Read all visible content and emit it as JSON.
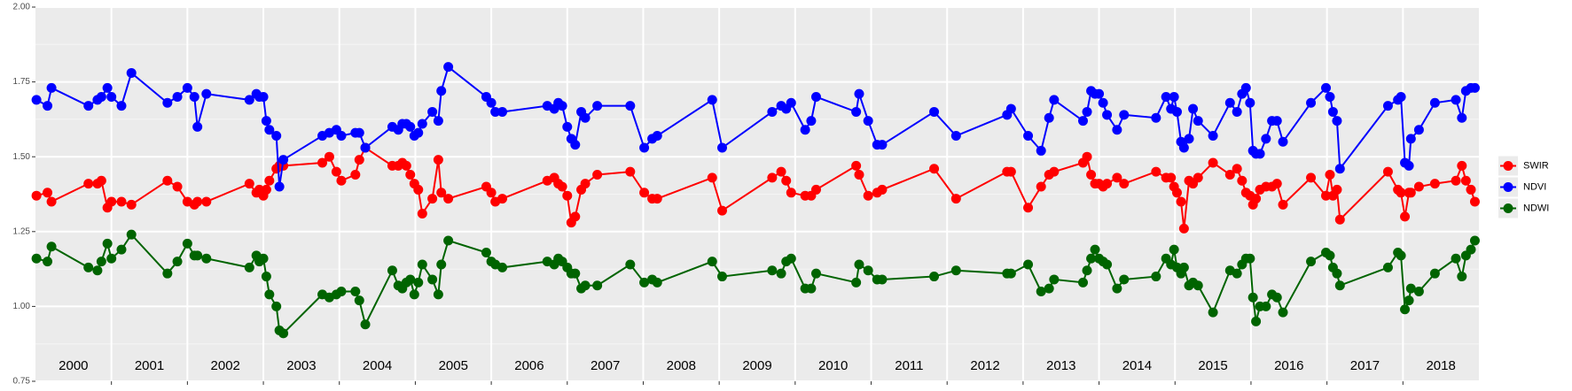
{
  "chart_data": {
    "type": "line",
    "x": [
      2000.013,
      2000.158,
      2000.211,
      2000.697,
      2000.816,
      2000.868,
      2000.947,
      2001.0,
      2001.132,
      2001.263,
      2001.737,
      2001.868,
      2002.0,
      2002.092,
      2002.132,
      2002.25,
      2002.816,
      2002.908,
      2002.947,
      2003.0,
      2003.039,
      2003.079,
      2003.171,
      2003.211,
      2003.263,
      2003.776,
      2003.868,
      2003.961,
      2004.026,
      2004.211,
      2004.263,
      2004.342,
      2004.697,
      2004.776,
      2004.829,
      2004.882,
      2004.934,
      2004.987,
      2005.039,
      2005.092,
      2005.224,
      2005.303,
      2005.342,
      2005.434,
      2005.934,
      2006.0,
      2006.053,
      2006.145,
      2006.737,
      2006.829,
      2006.882,
      2006.934,
      2007.0,
      2007.053,
      2007.105,
      2007.184,
      2007.237,
      2007.395,
      2007.829,
      2008.013,
      2008.118,
      2008.184,
      2008.908,
      2009.039,
      2009.697,
      2009.816,
      2009.882,
      2009.947,
      2010.132,
      2010.211,
      2010.276,
      2010.803,
      2010.842,
      2010.961,
      2011.079,
      2011.145,
      2011.829,
      2012.118,
      2012.789,
      2012.842,
      2013.066,
      2013.237,
      2013.342,
      2013.408,
      2013.789,
      2013.842,
      2013.895,
      2013.947,
      2014.0,
      2014.053,
      2014.105,
      2014.237,
      2014.329,
      2014.75,
      2014.882,
      2014.947,
      2014.987,
      2015.026,
      2015.079,
      2015.118,
      2015.184,
      2015.237,
      2015.303,
      2015.5,
      2015.724,
      2015.816,
      2015.882,
      2015.934,
      2015.987,
      2016.026,
      2016.066,
      2016.118,
      2016.197,
      2016.276,
      2016.342,
      2016.421,
      2016.789,
      2016.987,
      2017.039,
      2017.079,
      2017.132,
      2017.171,
      2017.803,
      2017.934,
      2017.974,
      2018.026,
      2018.079,
      2018.105,
      2018.211,
      2018.421,
      2018.697,
      2018.776,
      2018.829,
      2018.895,
      2018.947
    ],
    "series": [
      {
        "name": "SWIR",
        "color": "#ff0000",
        "values": [
          1.37,
          1.38,
          1.35,
          1.41,
          1.41,
          1.42,
          1.33,
          1.35,
          1.35,
          1.34,
          1.42,
          1.4,
          1.35,
          1.34,
          1.35,
          1.35,
          1.41,
          1.38,
          1.39,
          1.37,
          1.39,
          1.42,
          1.46,
          1.47,
          1.47,
          1.48,
          1.5,
          1.45,
          1.42,
          1.44,
          1.49,
          1.53,
          1.47,
          1.47,
          1.48,
          1.47,
          1.44,
          1.41,
          1.39,
          1.31,
          1.36,
          1.49,
          1.38,
          1.36,
          1.4,
          1.38,
          1.35,
          1.36,
          1.42,
          1.43,
          1.41,
          1.4,
          1.37,
          1.28,
          1.3,
          1.39,
          1.41,
          1.44,
          1.45,
          1.38,
          1.36,
          1.36,
          1.43,
          1.32,
          1.43,
          1.45,
          1.42,
          1.38,
          1.37,
          1.37,
          1.39,
          1.47,
          1.44,
          1.37,
          1.38,
          1.39,
          1.46,
          1.36,
          1.45,
          1.45,
          1.33,
          1.4,
          1.44,
          1.45,
          1.48,
          1.5,
          1.44,
          1.41,
          1.41,
          1.4,
          1.41,
          1.43,
          1.41,
          1.45,
          1.43,
          1.43,
          1.4,
          1.38,
          1.35,
          1.26,
          1.42,
          1.41,
          1.43,
          1.48,
          1.44,
          1.46,
          1.42,
          1.38,
          1.37,
          1.34,
          1.36,
          1.39,
          1.4,
          1.4,
          1.41,
          1.34,
          1.43,
          1.37,
          1.44,
          1.37,
          1.39,
          1.29,
          1.45,
          1.39,
          1.38,
          1.3,
          1.38,
          1.38,
          1.4,
          1.41,
          1.42,
          1.47,
          1.42,
          1.39,
          1.35
        ]
      },
      {
        "name": "NDVI",
        "color": "#0000ff",
        "values": [
          1.69,
          1.67,
          1.73,
          1.67,
          1.69,
          1.7,
          1.73,
          1.7,
          1.67,
          1.78,
          1.68,
          1.7,
          1.73,
          1.7,
          1.6,
          1.71,
          1.69,
          1.71,
          1.7,
          1.7,
          1.62,
          1.59,
          1.57,
          1.4,
          1.49,
          1.57,
          1.58,
          1.59,
          1.57,
          1.58,
          1.58,
          1.53,
          1.6,
          1.59,
          1.61,
          1.61,
          1.6,
          1.57,
          1.58,
          1.61,
          1.65,
          1.62,
          1.72,
          1.8,
          1.7,
          1.68,
          1.65,
          1.65,
          1.67,
          1.66,
          1.68,
          1.67,
          1.6,
          1.56,
          1.54,
          1.65,
          1.63,
          1.67,
          1.67,
          1.53,
          1.56,
          1.57,
          1.69,
          1.53,
          1.65,
          1.67,
          1.66,
          1.68,
          1.59,
          1.62,
          1.7,
          1.65,
          1.71,
          1.62,
          1.54,
          1.54,
          1.65,
          1.57,
          1.64,
          1.66,
          1.57,
          1.52,
          1.63,
          1.69,
          1.62,
          1.65,
          1.72,
          1.71,
          1.71,
          1.68,
          1.64,
          1.59,
          1.64,
          1.63,
          1.7,
          1.66,
          1.7,
          1.65,
          1.55,
          1.53,
          1.56,
          1.66,
          1.62,
          1.57,
          1.68,
          1.65,
          1.71,
          1.73,
          1.68,
          1.52,
          1.51,
          1.51,
          1.56,
          1.62,
          1.62,
          1.55,
          1.68,
          1.73,
          1.7,
          1.65,
          1.62,
          1.46,
          1.67,
          1.69,
          1.7,
          1.48,
          1.47,
          1.56,
          1.59,
          1.68,
          1.69,
          1.63,
          1.72,
          1.73,
          1.73
        ]
      },
      {
        "name": "NDWI",
        "color": "#006400",
        "values": [
          1.16,
          1.15,
          1.2,
          1.13,
          1.12,
          1.15,
          1.21,
          1.16,
          1.19,
          1.24,
          1.11,
          1.15,
          1.21,
          1.17,
          1.17,
          1.16,
          1.13,
          1.17,
          1.15,
          1.16,
          1.1,
          1.04,
          1.0,
          0.92,
          0.91,
          1.04,
          1.03,
          1.04,
          1.05,
          1.05,
          1.02,
          0.94,
          1.12,
          1.07,
          1.06,
          1.08,
          1.09,
          1.04,
          1.08,
          1.14,
          1.09,
          1.04,
          1.14,
          1.22,
          1.18,
          1.15,
          1.14,
          1.13,
          1.15,
          1.14,
          1.16,
          1.15,
          1.13,
          1.11,
          1.11,
          1.06,
          1.07,
          1.07,
          1.14,
          1.08,
          1.09,
          1.08,
          1.15,
          1.1,
          1.12,
          1.11,
          1.15,
          1.16,
          1.06,
          1.06,
          1.11,
          1.08,
          1.14,
          1.12,
          1.09,
          1.09,
          1.1,
          1.12,
          1.11,
          1.11,
          1.14,
          1.05,
          1.06,
          1.09,
          1.08,
          1.12,
          1.16,
          1.19,
          1.16,
          1.15,
          1.14,
          1.06,
          1.09,
          1.1,
          1.16,
          1.14,
          1.19,
          1.13,
          1.11,
          1.13,
          1.07,
          1.08,
          1.07,
          0.98,
          1.12,
          1.11,
          1.14,
          1.16,
          1.16,
          1.03,
          0.95,
          1.0,
          1.0,
          1.04,
          1.03,
          0.98,
          1.15,
          1.18,
          1.17,
          1.13,
          1.11,
          1.07,
          1.13,
          1.18,
          1.17,
          0.99,
          1.02,
          1.06,
          1.05,
          1.11,
          1.16,
          1.1,
          1.17,
          1.19,
          1.22
        ]
      }
    ],
    "xlim": [
      2000,
      2019
    ],
    "xticks": [
      {
        "value": 2000.5,
        "label": "2000"
      },
      {
        "value": 2001.5,
        "label": "2001"
      },
      {
        "value": 2002.5,
        "label": "2002"
      },
      {
        "value": 2003.5,
        "label": "2003"
      },
      {
        "value": 2004.5,
        "label": "2004"
      },
      {
        "value": 2005.5,
        "label": "2005"
      },
      {
        "value": 2006.5,
        "label": "2006"
      },
      {
        "value": 2007.5,
        "label": "2007"
      },
      {
        "value": 2008.5,
        "label": "2008"
      },
      {
        "value": 2009.5,
        "label": "2009"
      },
      {
        "value": 2010.5,
        "label": "2010"
      },
      {
        "value": 2011.5,
        "label": "2011"
      },
      {
        "value": 2012.5,
        "label": "2012"
      },
      {
        "value": 2013.5,
        "label": "2013"
      },
      {
        "value": 2014.5,
        "label": "2014"
      },
      {
        "value": 2015.5,
        "label": "2015"
      },
      {
        "value": 2016.5,
        "label": "2016"
      },
      {
        "value": 2017.5,
        "label": "2017"
      },
      {
        "value": 2018.5,
        "label": "2018"
      }
    ],
    "x_grid": [
      2001,
      2002,
      2003,
      2004,
      2005,
      2006,
      2007,
      2008,
      2009,
      2010,
      2011,
      2012,
      2013,
      2014,
      2015,
      2016,
      2017,
      2018
    ],
    "ylim": [
      0.75,
      2.0
    ],
    "yticks": [
      0.75,
      {
        "value": 1,
        "label": "1.00"
      },
      {
        "value": 1.25,
        "label": "1.25"
      },
      {
        "value": 1.5,
        "label": "1.50"
      },
      {
        "value": 1.75,
        "label": "1.75"
      },
      {
        "value": 2,
        "label": "2.00"
      }
    ],
    "grid": true,
    "legend": "right"
  }
}
